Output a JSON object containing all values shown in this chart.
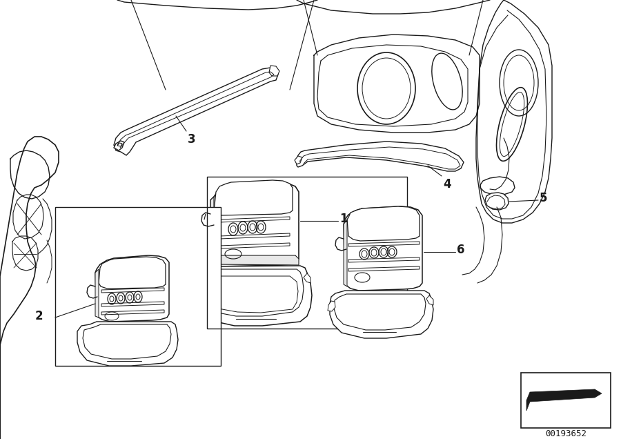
{
  "bg_color": "#ffffff",
  "line_color": "#1a1a1a",
  "catalog_number": "00193652",
  "fig_width": 9.0,
  "fig_height": 6.36,
  "dpi": 100
}
